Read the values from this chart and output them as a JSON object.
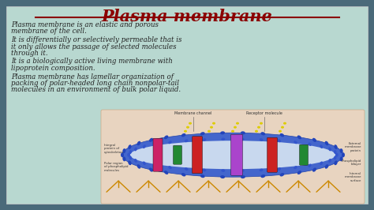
{
  "title": "Plasma membrane",
  "title_color": "#8B0000",
  "outer_bg": "#4a6a7a",
  "card_bg": "#b8d8d0",
  "text_area_bg": "#b8d8d0",
  "diagram_area_bg": "#e8d4c0",
  "body_paragraphs": [
    "Plasma membrane is an elastic and porous\nmembrane of the cell.",
    "It is differentially or selectively permeable that is\nit only allows the passage of selected molecules\nthrough it.",
    "It is a biologically active living membrane with\nlipoprotein composition.",
    "Plasma membrane has lamellar organization of\npacking of polar-headed long chain nonpolar-tail\nmolecules in an environment of bulk polar liquid."
  ],
  "text_color": "#222222",
  "font_size_title": 15,
  "font_size_body": 6.2,
  "membrane_color": "#4466bb",
  "membrane_head_color": "#3355aa",
  "protein_colors": [
    "#cc2255",
    "#228833",
    "#cc2222",
    "#882299",
    "#cc2222",
    "#228833"
  ],
  "filament_color": "#cc8800",
  "label_color": "#333333",
  "annotation_color": "#555555"
}
